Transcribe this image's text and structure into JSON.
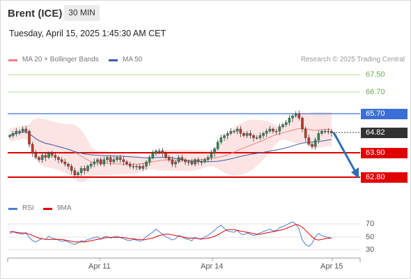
{
  "header": {
    "instrument": "Brent (ICE)",
    "timeframe": "30 MIN",
    "datetime": "Tuesday, April 15, 2025 1:45:30 AM CET"
  },
  "legend": {
    "ma20": "MA 20 + Bollinger Bands",
    "ma50": "MA 50",
    "credit": "Research © 2025 Trading Central",
    "rsi": "RSI",
    "ma9": "9MA"
  },
  "colors": {
    "ma20": "#f08080",
    "ma50": "#3b5ea8",
    "resistance_blue": "#3b6fd6",
    "support_red": "#e00000",
    "target_green": "#9bcf7c",
    "band_fill": "#fde4e4",
    "arrow": "#2f6db5"
  },
  "levels": {
    "l6750": "67.50",
    "l6670": "66.70",
    "l6570": "65.70",
    "l6482": "64.82",
    "l6390": "63.90",
    "l6280": "62.80"
  },
  "xaxis": {
    "d1": "Apr 11",
    "d2": "Apr 14",
    "d3": "Apr 15"
  },
  "rsi_axis": {
    "t70": "70",
    "t50": "50",
    "t30": "30"
  },
  "chart_data": {
    "type": "candlestick",
    "ylim": [
      62.5,
      67.7
    ],
    "support_resistance": [
      67.5,
      66.7,
      65.7,
      64.82,
      63.9,
      62.8
    ],
    "last_price": 64.82,
    "close_series": [
      64.7,
      64.8,
      64.9,
      64.9,
      65.0,
      64.9,
      64.3,
      63.9,
      63.7,
      63.6,
      63.8,
      63.7,
      63.9,
      63.8,
      63.7,
      63.6,
      63.5,
      63.4,
      63.3,
      63.1,
      62.9,
      63.0,
      63.2,
      63.1,
      63.3,
      63.4,
      63.5,
      63.6,
      63.4,
      63.6,
      63.7,
      63.5,
      63.6,
      63.7,
      63.6,
      63.5,
      63.4,
      63.3,
      63.3,
      63.3,
      63.2,
      63.3,
      63.5,
      63.7,
      63.9,
      64.0,
      64.0,
      63.9,
      63.7,
      63.6,
      63.4,
      63.5,
      63.7,
      63.6,
      63.5,
      63.5,
      63.4,
      63.6,
      63.5,
      63.5,
      63.6,
      63.7,
      63.9,
      64.1,
      64.4,
      64.6,
      64.7,
      64.8,
      64.9,
      64.9,
      65.0,
      64.8,
      64.7,
      64.8,
      64.7,
      64.6,
      64.6,
      64.7,
      64.8,
      64.9,
      65.0,
      64.9,
      64.9,
      65.1,
      65.2,
      65.3,
      65.5,
      65.6,
      65.7,
      65.5,
      65.0,
      64.6,
      64.3,
      64.2,
      64.5,
      64.8,
      64.9,
      64.9,
      64.9,
      64.82
    ],
    "rsi": [
      55,
      58,
      56,
      55,
      54,
      57,
      49,
      44,
      42,
      45,
      47,
      46,
      51,
      48,
      47,
      45,
      43,
      44,
      42,
      40,
      38,
      41,
      44,
      43,
      46,
      47,
      49,
      50,
      46,
      50,
      51,
      48,
      50,
      51,
      49,
      47,
      45,
      44,
      46,
      45,
      43,
      46,
      50,
      54,
      57,
      62,
      58,
      54,
      50,
      48,
      45,
      47,
      52,
      50,
      47,
      46,
      44,
      49,
      47,
      46,
      50,
      52,
      56,
      60,
      65,
      68,
      63,
      59,
      58,
      57,
      60,
      55,
      53,
      56,
      54,
      52,
      53,
      56,
      58,
      60,
      62,
      59,
      60,
      64,
      66,
      68,
      71,
      73,
      70,
      62,
      45,
      38,
      35,
      40,
      50,
      55,
      52,
      50,
      49,
      48
    ],
    "rsi_ma9": [
      58,
      58,
      57,
      56,
      56,
      55,
      54,
      52,
      50,
      48,
      47,
      46,
      46,
      46,
      46,
      46,
      46,
      45,
      44,
      43,
      42,
      42,
      42,
      42,
      43,
      44,
      45,
      46,
      47,
      48,
      49,
      49,
      49,
      49,
      49,
      49,
      48,
      47,
      47,
      46,
      46,
      45,
      46,
      47,
      48,
      50,
      52,
      53,
      54,
      54,
      53,
      52,
      51,
      50,
      49,
      48,
      48,
      48,
      47,
      47,
      47,
      48,
      49,
      51,
      53,
      56,
      59,
      61,
      61,
      61,
      60,
      59,
      58,
      57,
      56,
      55,
      54,
      54,
      55,
      56,
      57,
      58,
      59,
      60,
      61,
      63,
      65,
      67,
      69,
      68,
      65,
      60,
      55,
      50,
      46,
      45,
      46,
      47,
      48,
      48
    ],
    "rsi_levels": [
      70,
      50,
      30
    ],
    "x_ticks": [
      "Apr 11",
      "Apr 14",
      "Apr 15"
    ]
  }
}
